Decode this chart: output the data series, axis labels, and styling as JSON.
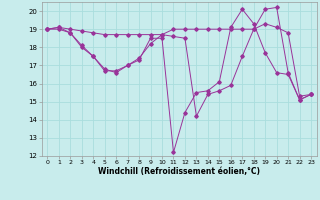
{
  "xlabel": "Windchill (Refroidissement éolien,°C)",
  "background_color": "#c8ecec",
  "line_color": "#993399",
  "grid_color": "#aadddd",
  "xlim": [
    -0.5,
    23.5
  ],
  "ylim": [
    12,
    20.5
  ],
  "yticks": [
    12,
    13,
    14,
    15,
    16,
    17,
    18,
    19,
    20
  ],
  "xticks": [
    0,
    1,
    2,
    3,
    4,
    5,
    6,
    7,
    8,
    9,
    10,
    11,
    12,
    13,
    14,
    15,
    16,
    17,
    18,
    19,
    20,
    21,
    22,
    23
  ],
  "series": [
    [
      19.0,
      19.1,
      19.0,
      18.9,
      18.8,
      18.7,
      18.7,
      18.7,
      18.7,
      18.7,
      18.7,
      19.0,
      19.0,
      19.0,
      19.0,
      19.0,
      19.0,
      19.0,
      19.0,
      19.3,
      19.1,
      18.8,
      15.3,
      15.4
    ],
    [
      19.0,
      19.1,
      18.8,
      18.1,
      17.5,
      16.7,
      16.7,
      17.0,
      17.4,
      18.2,
      18.7,
      18.6,
      18.5,
      14.2,
      15.4,
      15.6,
      15.9,
      17.5,
      19.0,
      20.1,
      20.2,
      16.6,
      15.1,
      15.4
    ],
    [
      19.0,
      19.0,
      18.8,
      18.0,
      17.5,
      16.8,
      16.6,
      17.0,
      17.3,
      18.5,
      18.5,
      12.2,
      14.4,
      15.5,
      15.6,
      16.1,
      19.1,
      20.1,
      19.3,
      17.7,
      16.6,
      16.5,
      15.1,
      15.4
    ]
  ]
}
